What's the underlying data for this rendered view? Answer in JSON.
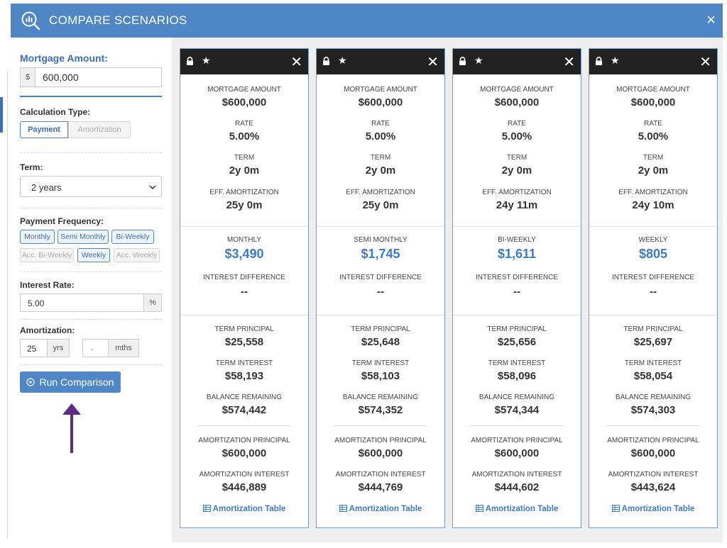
{
  "header": {
    "title": "COMPARE SCENARIOS",
    "close_icon": "×"
  },
  "form": {
    "mortgage_label": "Mortgage Amount:",
    "mortgage_prefix": "$",
    "mortgage_value": "600,000",
    "calc_type_label": "Calculation Type:",
    "calc_types": [
      "Payment",
      "Amortization"
    ],
    "term_label": "Term:",
    "term_value": "2 years",
    "freq_label": "Payment Frequency:",
    "freq_row1": [
      "Monthly",
      "Semi Monthly",
      "Bi-Weekly"
    ],
    "freq_row2": [
      "Acc. Bi-Weekly",
      "Weekly",
      "Acc. Weekly"
    ],
    "rate_label": "Interest Rate:",
    "rate_value": "5.00",
    "rate_suffix": "%",
    "amort_label": "Amortization:",
    "amort_years": "25",
    "amort_yrs_unit": "yrs",
    "amort_months": "-",
    "amort_mths_unit": "mths",
    "run_label": "Run Comparison"
  },
  "labels": {
    "mortgage_amount": "MORTGAGE AMOUNT",
    "rate": "RATE",
    "term": "TERM",
    "eff_amortization": "EFF. AMORTIZATION",
    "interest_difference": "INTEREST DIFFERENCE",
    "term_principal": "TERM PRINCIPAL",
    "term_interest": "TERM INTEREST",
    "balance_remaining": "BALANCE REMAINING",
    "amortization_principal": "AMORTIZATION PRINCIPAL",
    "amortization_interest": "AMORTIZATION INTEREST",
    "amortization_table": "Amortization Table"
  },
  "cards": [
    {
      "mortgage_amount": "$600,000",
      "rate": "5.00%",
      "term": "2y 0m",
      "eff_amortization": "25y 0m",
      "frequency": "MONTHLY",
      "payment": "$3,490",
      "interest_difference": "--",
      "term_principal": "$25,558",
      "term_interest": "$58,193",
      "balance_remaining": "$574,442",
      "amortization_principal": "$600,000",
      "amortization_interest": "$446,889"
    },
    {
      "mortgage_amount": "$600,000",
      "rate": "5.00%",
      "term": "2y 0m",
      "eff_amortization": "25y 0m",
      "frequency": "SEMI MONTHLY",
      "payment": "$1,745",
      "interest_difference": "--",
      "term_principal": "$25,648",
      "term_interest": "$58,103",
      "balance_remaining": "$574,352",
      "amortization_principal": "$600,000",
      "amortization_interest": "$444,769"
    },
    {
      "mortgage_amount": "$600,000",
      "rate": "5.00%",
      "term": "2y 0m",
      "eff_amortization": "24y 11m",
      "frequency": "BI-WEEKLY",
      "payment": "$1,611",
      "interest_difference": "--",
      "term_principal": "$25,656",
      "term_interest": "$58,096",
      "balance_remaining": "$574,344",
      "amortization_principal": "$600,000",
      "amortization_interest": "$444,602"
    },
    {
      "mortgage_amount": "$600,000",
      "rate": "5.00%",
      "term": "2y 0m",
      "eff_amortization": "24y 10m",
      "frequency": "WEEKLY",
      "payment": "$805",
      "interest_difference": "--",
      "term_principal": "$25,697",
      "term_interest": "$58,054",
      "balance_remaining": "$574,303",
      "amortization_principal": "$600,000",
      "amortization_interest": "$443,624"
    }
  ],
  "colors": {
    "header": "#4f86c6",
    "accent": "#3b7cc9",
    "annotation_arrow": "#5b2d82"
  }
}
